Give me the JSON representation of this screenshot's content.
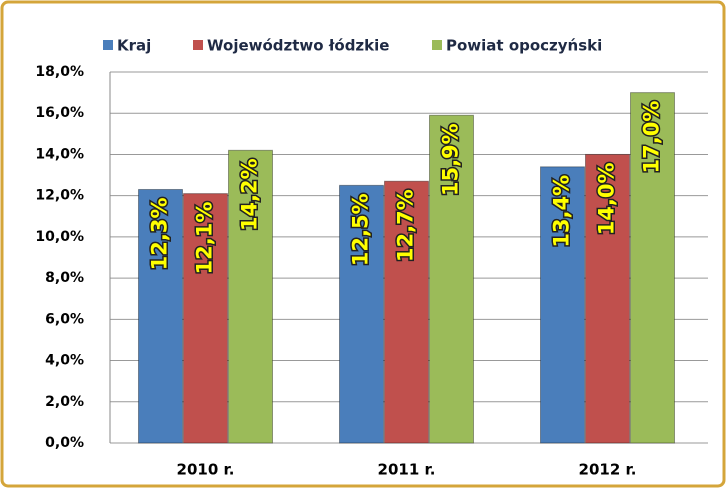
{
  "chart_data": {
    "type": "bar",
    "categories": [
      "2010 r.",
      "2011 r.",
      "2012 r."
    ],
    "series": [
      {
        "name": "Kraj",
        "color": "#4a7ebb",
        "values": [
          12.3,
          12.5,
          13.4
        ],
        "value_labels": [
          "12,3%",
          "12,5%",
          "13,4%"
        ]
      },
      {
        "name": "Województwo łódzkie",
        "color": "#c0504d",
        "values": [
          12.1,
          12.7,
          14.0
        ],
        "value_labels": [
          "12,1%",
          "12,7%",
          "14,0%"
        ]
      },
      {
        "name": "Powiat opoczyński",
        "color": "#9bbb59",
        "values": [
          14.2,
          15.9,
          17.0
        ],
        "value_labels": [
          "14,2%",
          "15,9%",
          "17,0%"
        ]
      }
    ],
    "ylim": [
      0,
      18
    ],
    "yticks": [
      {
        "value": 0,
        "label": "0,0%"
      },
      {
        "value": 2,
        "label": "2,0%"
      },
      {
        "value": 4,
        "label": "4,0%"
      },
      {
        "value": 6,
        "label": "6,0%"
      },
      {
        "value": 8,
        "label": "8,0%"
      },
      {
        "value": 10,
        "label": "10,0%"
      },
      {
        "value": 12,
        "label": "12,0%"
      },
      {
        "value": 14,
        "label": "14,0%"
      },
      {
        "value": 16,
        "label": "16,0%"
      },
      {
        "value": 18,
        "label": "18,0%"
      }
    ],
    "grid": true,
    "legend": "top"
  }
}
